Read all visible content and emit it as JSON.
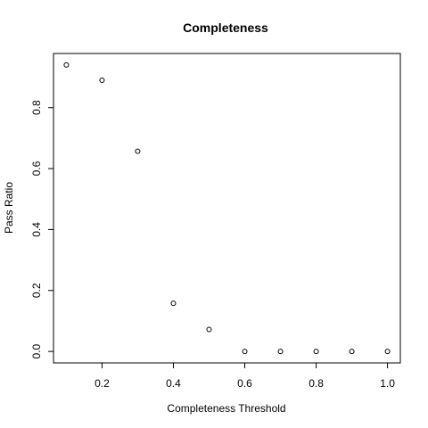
{
  "chart_data": {
    "type": "scatter",
    "title": "Completeness",
    "xlabel": "Completeness Threshold",
    "ylabel": "Pass Ratio",
    "x": [
      0.1,
      0.2,
      0.3,
      0.4,
      0.5,
      0.6,
      0.7,
      0.8,
      0.9,
      1.0
    ],
    "y": [
      0.94,
      0.89,
      0.657,
      0.158,
      0.072,
      0.0,
      0.0,
      0.0,
      0.0,
      0.0
    ],
    "xlim": [
      0.064,
      1.036
    ],
    "ylim": [
      -0.0376,
      0.9776
    ],
    "xticks": [
      0.2,
      0.4,
      0.6,
      0.8,
      1.0
    ],
    "xtick_labels": [
      "0.2",
      "0.4",
      "0.6",
      "0.8",
      "1.0"
    ],
    "yticks": [
      0.0,
      0.2,
      0.4,
      0.6,
      0.8
    ],
    "ytick_labels": [
      "0.0",
      "0.2",
      "0.4",
      "0.6",
      "0.8"
    ],
    "marker": "open-circle",
    "marker_color": "#000000",
    "grid": false,
    "legend": false
  }
}
